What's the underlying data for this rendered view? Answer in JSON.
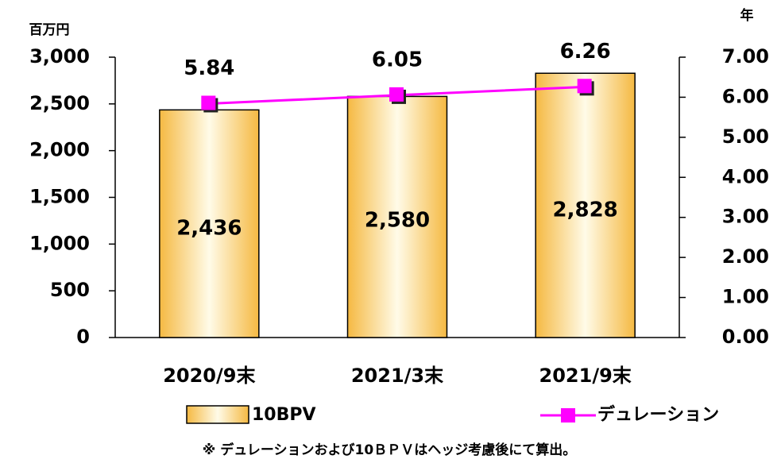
{
  "chart_data": {
    "type": "bar_line",
    "categories": [
      "2020/9末",
      "2021/3末",
      "2021/9末"
    ],
    "series": [
      {
        "name": "10BPV",
        "type": "bar",
        "color": "#f5b942",
        "values": [
          2436,
          2580,
          2828
        ],
        "value_labels": [
          "2,436",
          "2,580",
          "2,828"
        ]
      },
      {
        "name": "デュレーション",
        "type": "line",
        "axis": "y2",
        "color": "#ff00ff",
        "values": [
          5.84,
          6.05,
          6.26
        ]
      }
    ],
    "ylabel": "百万円",
    "y2label": "年",
    "ylim": [
      0,
      3000
    ],
    "yticks": [
      0,
      500,
      {
        "value": 1000,
        "label": "1,000"
      },
      {
        "value": 1500,
        "label": "1,500"
      },
      {
        "value": 2000,
        "label": "2,000"
      },
      {
        "value": 2500,
        "label": "2,500"
      },
      {
        "value": 3000,
        "label": "3,000"
      }
    ],
    "y2lim": [
      0,
      7
    ],
    "y2ticks": [
      {
        "value": 0,
        "label": "0.00"
      },
      {
        "value": 1,
        "label": "1.00"
      },
      {
        "value": 2,
        "label": "2.00"
      },
      {
        "value": 3,
        "label": "3.00"
      },
      {
        "value": 4,
        "label": "4.00"
      },
      {
        "value": 5,
        "label": "5.00"
      },
      {
        "value": 6,
        "label": "6.00"
      },
      {
        "value": 7,
        "label": "7.00"
      }
    ],
    "footnote": "※ デュレーションおよび10ＢＰＶはヘッジ考慮後にて算出。"
  }
}
